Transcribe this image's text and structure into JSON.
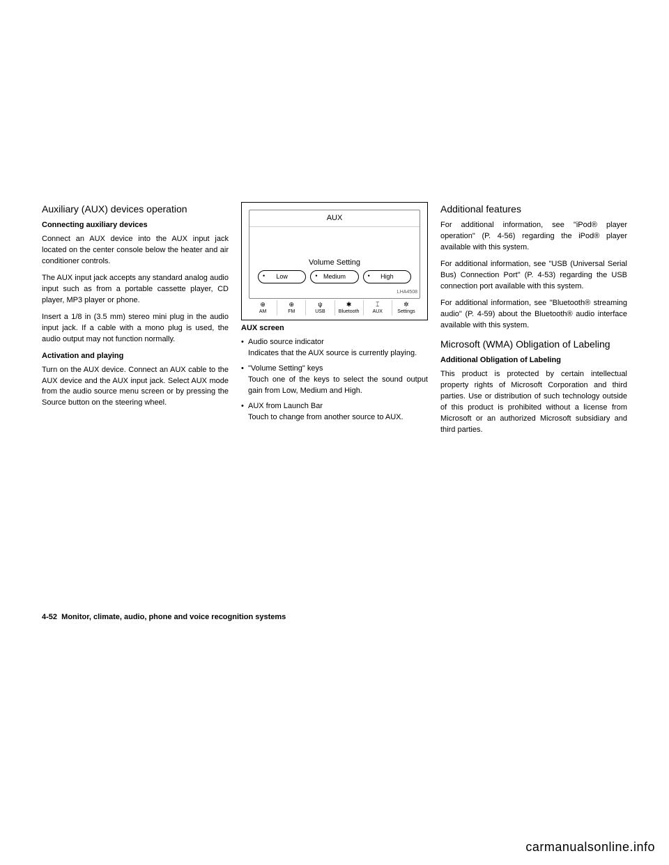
{
  "col1": {
    "h2": "Auxiliary (AUX) devices operation",
    "sub1": "Connecting auxiliary devices",
    "p1": "Connect an AUX device into the AUX input jack located on the center console below the heater and air conditioner controls.",
    "p2": "The AUX input jack accepts any standard analog audio input such as from a portable cassette player, CD player, MP3 player or phone.",
    "p3": "Insert a 1/8 in (3.5 mm) stereo mini plug in the audio input jack. If a cable with a mono plug is used, the audio output may not function normally.",
    "sub2": "Activation and playing",
    "p4": "Turn on the AUX device. Connect an AUX cable to the AUX device and the AUX input jack. Select AUX mode from the audio source menu screen or by pressing the Source button on the steering wheel."
  },
  "screen": {
    "title": "AUX",
    "vol_label": "Volume Setting",
    "buttons": [
      "Low",
      "Medium",
      "High"
    ],
    "launch": [
      {
        "ico": "⊕",
        "label": "AM"
      },
      {
        "ico": "⊕",
        "label": "FM"
      },
      {
        "ico": "ψ",
        "label": "USB"
      },
      {
        "ico": "✱",
        "label": "Bluetooth"
      },
      {
        "ico": "⌶",
        "label": "AUX"
      },
      {
        "ico": "✲",
        "label": "Settings"
      }
    ],
    "ref": "LHA4508"
  },
  "col2": {
    "caption": "AUX screen",
    "li1t": "Audio source indicator",
    "li1b": "Indicates that the AUX source is currently playing.",
    "li2t": "\"Volume Setting\" keys",
    "li2b": "Touch one of the keys to select the sound output gain from Low, Medium and High.",
    "li3t": "AUX from Launch Bar",
    "li3b": "Touch to change from another source to AUX."
  },
  "col3": {
    "h2a": "Additional features",
    "p1": "For additional information, see \"iPod® player operation\" (P. 4-56) regarding the iPod® player available with this system.",
    "p2": "For additional information, see \"USB (Universal Serial Bus) Connection Port\" (P. 4-53) regarding the USB connection port available with this system.",
    "p3": "For additional information, see \"Bluetooth® streaming audio\" (P. 4-59) about the Bluetooth® audio interface available with this system.",
    "h2b": "Microsoft (WMA) Obligation of Labeling",
    "sub": "Additional Obligation of Labeling",
    "p4": "This product is protected by certain intellectual property rights of Microsoft Corporation and third parties. Use or distribution of such technology outside of this product is prohibited without a license from Microsoft or an authorized Microsoft subsidiary and third parties."
  },
  "footer": {
    "pg": "4-52",
    "txt": "Monitor, climate, audio, phone and voice recognition systems"
  },
  "watermark": "carmanualsonline.info"
}
